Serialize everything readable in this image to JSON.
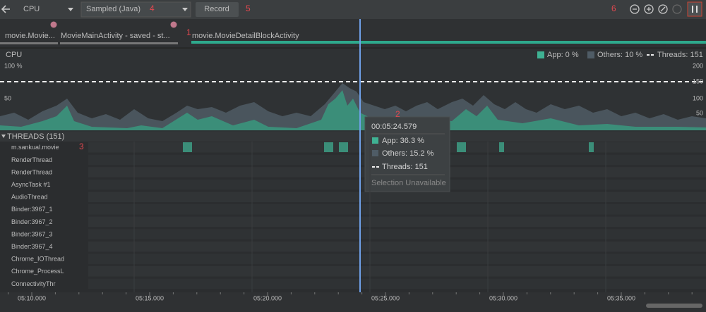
{
  "toolbar": {
    "profiler": "CPU",
    "config": "Sampled (Java)",
    "record": "Record"
  },
  "annotations": [
    "1",
    "2",
    "3",
    "4",
    "5",
    "6"
  ],
  "activities": [
    "movie.Movie...",
    "MovieMainActivity - saved - st...",
    "movie.MovieDetailBlockActivity"
  ],
  "cpu": {
    "title": "CPU",
    "legend": [
      "App: 0 %",
      "Others: 10 %",
      "Threads: 151"
    ],
    "left_axis": [
      "100 %",
      "50"
    ],
    "right_axis": [
      "200",
      "150",
      "100",
      "50"
    ]
  },
  "threads": {
    "header": "THREADS (151)",
    "names": [
      "m.sankual.movie",
      "RenderThread",
      "RenderThread",
      "AsyncTask #1",
      "AudioThread",
      "Binder:3967_1",
      "Binder:3967_2",
      "Binder:3967_3",
      "Binder:3967_4",
      "Chrome_IOThread",
      "Chrome_ProcessL",
      "ConnectivityThr"
    ]
  },
  "tooltip": {
    "time": "00:05:24.579",
    "items": [
      "App: 36.3 %",
      "Others: 15.2 %",
      "Threads: 151"
    ],
    "note": "Selection Unavailable"
  },
  "timeline": [
    "05:10.000",
    "05:15.000",
    "05:20.000",
    "05:25.000",
    "05:30.000",
    "05:35.000"
  ]
}
